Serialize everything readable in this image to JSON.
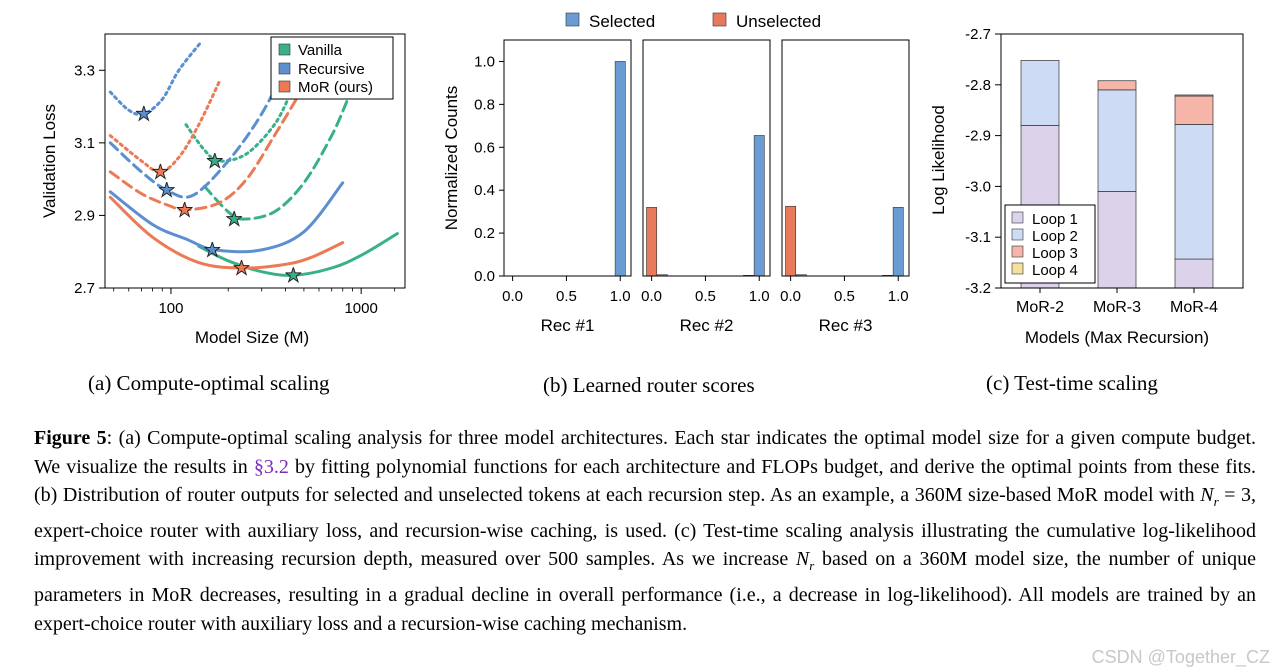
{
  "colors": {
    "vanilla": "#3ab08a",
    "recursive": "#5b8fd0",
    "mor": "#ec7a55",
    "selected": "#6b9bd3",
    "unselected": "#e8795a",
    "loop1": "#dcd3ea",
    "loop2": "#cddcf4",
    "loop3": "#f5b5a8",
    "loop4": "#f3e09a"
  },
  "panel_a": {
    "caption": "(a) Compute-optimal scaling",
    "chart_data": {
      "type": "line",
      "xlabel": "Model Size (M)",
      "ylabel": "Validation Loss",
      "xscale": "log",
      "xlim": [
        45,
        1700
      ],
      "ylim": [
        2.7,
        3.4
      ],
      "xticks": [
        100,
        1000
      ],
      "xtick_labels": [
        "100",
        "1000"
      ],
      "yticks": [
        2.7,
        2.9,
        3.1,
        3.3
      ],
      "ytick_labels": [
        "2.7",
        "2.9",
        "3.1",
        "3.3"
      ],
      "legend": {
        "placement": "top-right",
        "entries": [
          "Vanilla",
          "Recursive",
          "MoR (ours)"
        ]
      },
      "series": [
        {
          "name": "Vanilla",
          "budget": "high",
          "style": "solid",
          "x": [
            140,
            200,
            300,
            440,
            700,
            1000,
            1550
          ],
          "y": [
            2.815,
            2.775,
            2.745,
            2.735,
            2.755,
            2.79,
            2.85
          ]
        },
        {
          "name": "Vanilla",
          "budget": "mid",
          "style": "dashed",
          "x": [
            150,
            200,
            240,
            350,
            500,
            700,
            850
          ],
          "y": [
            2.98,
            2.91,
            2.89,
            2.91,
            2.99,
            3.12,
            3.22
          ]
        },
        {
          "name": "Vanilla",
          "budget": "low",
          "style": "dotted",
          "x": [
            120,
            150,
            180,
            250,
            350,
            420
          ],
          "y": [
            3.15,
            3.08,
            3.05,
            3.07,
            3.15,
            3.23
          ]
        },
        {
          "name": "Recursive",
          "budget": "high",
          "style": "solid",
          "x": [
            48,
            80,
            120,
            170,
            300,
            500,
            800
          ],
          "y": [
            2.965,
            2.875,
            2.835,
            2.805,
            2.805,
            2.855,
            2.99
          ]
        },
        {
          "name": "Recursive",
          "budget": "mid",
          "style": "dashed",
          "x": [
            48,
            70,
            95,
            130,
            200,
            300,
            420
          ],
          "y": [
            3.1,
            3.02,
            2.97,
            2.955,
            3.05,
            3.18,
            3.33
          ]
        },
        {
          "name": "Recursive",
          "budget": "low",
          "style": "dotted",
          "x": [
            48,
            60,
            72,
            90,
            110,
            145
          ],
          "y": [
            3.24,
            3.19,
            3.18,
            3.22,
            3.3,
            3.38
          ]
        },
        {
          "name": "MoR (ours)",
          "budget": "high",
          "style": "solid",
          "x": [
            48,
            80,
            140,
            240,
            400,
            550,
            800
          ],
          "y": [
            2.95,
            2.84,
            2.77,
            2.755,
            2.765,
            2.785,
            2.825
          ]
        },
        {
          "name": "MoR (ours)",
          "budget": "mid",
          "style": "dashed",
          "x": [
            48,
            70,
            100,
            120,
            180,
            250,
            350,
            480
          ],
          "y": [
            3.02,
            2.96,
            2.925,
            2.915,
            2.935,
            3.0,
            3.12,
            3.24
          ]
        },
        {
          "name": "MoR (ours)",
          "budget": "low",
          "style": "dotted",
          "x": [
            48,
            70,
            88,
            110,
            140,
            180
          ],
          "y": [
            3.12,
            3.05,
            3.02,
            3.06,
            3.15,
            3.27
          ]
        }
      ],
      "optima": [
        {
          "name": "Vanilla",
          "x": [
            170,
            215,
            440
          ],
          "y": [
            3.05,
            2.89,
            2.735
          ]
        },
        {
          "name": "Recursive",
          "x": [
            72,
            95,
            165
          ],
          "y": [
            3.18,
            2.97,
            2.805
          ]
        },
        {
          "name": "MoR (ours)",
          "x": [
            88,
            118,
            235
          ],
          "y": [
            3.02,
            2.915,
            2.755
          ]
        }
      ]
    }
  },
  "panel_b": {
    "caption": "(b) Learned router scores",
    "chart_data": {
      "type": "bar",
      "ylabel": "Normalized Counts",
      "ylim": [
        0,
        1.1
      ],
      "yticks": [
        0.0,
        0.2,
        0.4,
        0.6,
        0.8,
        1.0
      ],
      "ytick_labels": [
        "0.0",
        "0.2",
        "0.4",
        "0.6",
        "0.8",
        "1.0"
      ],
      "xlim": [
        -0.08,
        1.1
      ],
      "xticks": [
        0.0,
        0.5,
        1.0
      ],
      "xtick_labels": [
        "0.0",
        "0.5",
        "1.0"
      ],
      "legend": {
        "placement": "top",
        "entries": [
          "Selected",
          "Unselected"
        ]
      },
      "subplots": [
        {
          "title": "Rec #1",
          "selected": [
            {
              "x": 1.0,
              "value": 1.0
            }
          ],
          "unselected": []
        },
        {
          "title": "Rec #2",
          "selected": [
            {
              "x": 0.9,
              "value": 0.003
            },
            {
              "x": 1.0,
              "value": 0.655
            }
          ],
          "unselected": [
            {
              "x": 0.0,
              "value": 0.32
            },
            {
              "x": 0.1,
              "value": 0.006
            }
          ]
        },
        {
          "title": "Rec #3",
          "selected": [
            {
              "x": 0.9,
              "value": 0.003
            },
            {
              "x": 1.0,
              "value": 0.32
            }
          ],
          "unselected": [
            {
              "x": 0.0,
              "value": 0.325
            },
            {
              "x": 0.1,
              "value": 0.006
            }
          ]
        }
      ]
    }
  },
  "panel_c": {
    "caption": "(c) Test-time scaling",
    "chart_data": {
      "type": "bar",
      "stacked": true,
      "xlabel": "Models (Max Recursion)",
      "ylabel": "Log Likelihood",
      "ylim": [
        -3.2,
        -2.7
      ],
      "yticks": [
        -2.7,
        -2.8,
        -2.9,
        -3.0,
        -3.1,
        -3.2
      ],
      "ytick_labels": [
        "-2.7",
        "-2.8",
        "-2.9",
        "-3.0",
        "-3.1",
        "-3.2"
      ],
      "categories": [
        "MoR-2",
        "MoR-3",
        "MoR-4"
      ],
      "legend": {
        "placement": "bottom-left",
        "entries": [
          "Loop 1",
          "Loop 2",
          "Loop 3",
          "Loop 4"
        ]
      },
      "cumulative_values": [
        {
          "name": "Loop 1",
          "values": [
            -2.88,
            -3.01,
            -3.143
          ]
        },
        {
          "name": "Loop 2",
          "values": [
            -2.752,
            -2.81,
            -2.878
          ]
        },
        {
          "name": "Loop 3",
          "values": [
            null,
            -2.792,
            -2.822
          ]
        },
        {
          "name": "Loop 4",
          "values": [
            null,
            null,
            -2.82
          ]
        }
      ]
    }
  },
  "caption": {
    "label": "Figure",
    "number": "5",
    "t1": ": (a) Compute-optimal scaling analysis for three model architectures. Each star indicates the optimal model size for a given compute budget. We visualize the results in ",
    "ref": "§3.2",
    "t2": " by fitting polynomial functions for each architecture and FLOPs budget, and derive the optimal points from these fits. (b) Distribution of router outputs for selected and unselected tokens at each recursion step. As an example, a 360M size-based MoR model with ",
    "m1": "N",
    "m1sub": "r",
    "m1rest": " = 3",
    "t3": ", expert-choice router with auxiliary loss, and recursion-wise caching, is used. (c) Test-time scaling analysis illustrating the cumulative log-likelihood improvement with increasing recursion depth, measured over 500 samples. As we increase ",
    "m2": "N",
    "m2sub": "r",
    "t4": " based on a 360M model size, the number of unique parameters in MoR decreases, resulting in a gradual decline in overall performance (i.e., a decrease in log-likelihood). All models are trained by an expert-choice router with auxiliary loss and a recursion-wise caching mechanism."
  },
  "watermark": "CSDN @Together_CZ"
}
